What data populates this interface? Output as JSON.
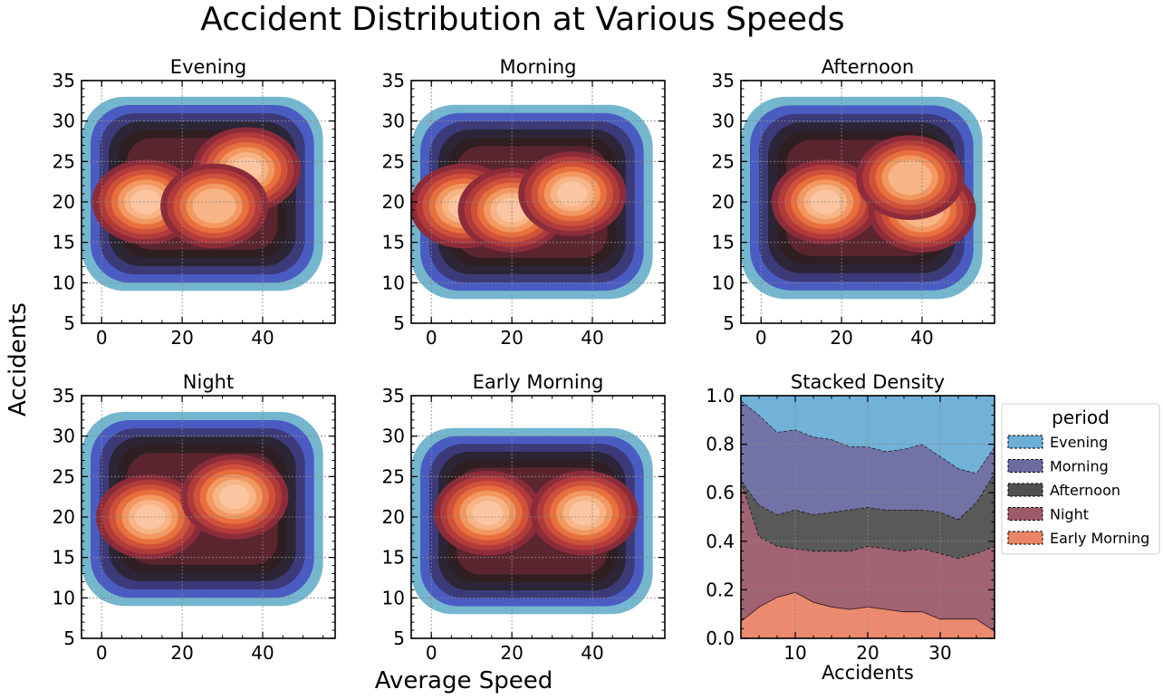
{
  "figure": {
    "title": "Accident Distribution at Various Speeds",
    "xlabel": "Average Speed",
    "ylabel": "Accidents"
  },
  "colors": {
    "kde_levels": [
      "#75b6cf",
      "#4a5cc2",
      "#3c3a78",
      "#2b2536",
      "#2f1f22",
      "#5b2530",
      "#8c2c3a",
      "#b13a3a",
      "#d0513a",
      "#e8703f",
      "#f29860",
      "#f7b486",
      "#fac5a0"
    ],
    "stack": {
      "Evening": "#6baed6",
      "Morning": "#6c6aa1",
      "Afternoon": "#505050",
      "Night": "#9c5a6a",
      "Early Morning": "#ea8466"
    }
  },
  "chart_data": [
    {
      "type": "heatmap",
      "kind": "kde-contour",
      "title": "Evening",
      "xlim": [
        -5,
        58
      ],
      "ylim": [
        5,
        35
      ],
      "xticks": [
        0,
        20,
        40
      ],
      "yticks": [
        5,
        10,
        15,
        20,
        25,
        30,
        35
      ],
      "grid": true,
      "hotspots": [
        {
          "x": 11,
          "y": 20,
          "peak": 1.0
        },
        {
          "x": 36,
          "y": 24,
          "peak": 1.0
        },
        {
          "x": 28,
          "y": 19.5,
          "peak": 0.9
        }
      ],
      "support": {
        "x": [
          -5,
          55
        ],
        "y": [
          9,
          33
        ]
      }
    },
    {
      "type": "heatmap",
      "kind": "kde-contour",
      "title": "Morning",
      "xlim": [
        -5,
        58
      ],
      "ylim": [
        5,
        35
      ],
      "xticks": [
        0,
        20,
        40
      ],
      "yticks": [
        5,
        10,
        15,
        20,
        25,
        30,
        35
      ],
      "grid": true,
      "hotspots": [
        {
          "x": 8,
          "y": 19.5,
          "peak": 0.95
        },
        {
          "x": 20,
          "y": 19,
          "peak": 1.0
        },
        {
          "x": 35,
          "y": 21,
          "peak": 1.0
        }
      ],
      "support": {
        "x": [
          -5,
          55
        ],
        "y": [
          8,
          32
        ]
      }
    },
    {
      "type": "heatmap",
      "kind": "kde-contour",
      "title": "Afternoon",
      "xlim": [
        -5,
        58
      ],
      "ylim": [
        5,
        35
      ],
      "xticks": [
        0,
        20,
        40
      ],
      "yticks": [
        5,
        10,
        15,
        20,
        25,
        30,
        35
      ],
      "grid": true,
      "hotspots": [
        {
          "x": 16,
          "y": 20,
          "peak": 1.0
        },
        {
          "x": 40,
          "y": 19,
          "peak": 0.85
        },
        {
          "x": 37,
          "y": 23,
          "peak": 0.8
        }
      ],
      "support": {
        "x": [
          -5,
          55
        ],
        "y": [
          8,
          33
        ]
      }
    },
    {
      "type": "heatmap",
      "kind": "kde-contour",
      "title": "Night",
      "xlim": [
        -5,
        58
      ],
      "ylim": [
        5,
        35
      ],
      "xticks": [
        0,
        20,
        40
      ],
      "yticks": [
        5,
        10,
        15,
        20,
        25,
        30,
        35
      ],
      "grid": true,
      "hotspots": [
        {
          "x": 12,
          "y": 20,
          "peak": 1.0
        },
        {
          "x": 33,
          "y": 22.5,
          "peak": 1.0
        }
      ],
      "support": {
        "x": [
          -5,
          55
        ],
        "y": [
          9,
          33
        ]
      }
    },
    {
      "type": "heatmap",
      "kind": "kde-contour",
      "title": "Early Morning",
      "xlim": [
        -5,
        58
      ],
      "ylim": [
        5,
        35
      ],
      "xticks": [
        0,
        20,
        40
      ],
      "yticks": [
        5,
        10,
        15,
        20,
        25,
        30,
        35
      ],
      "grid": true,
      "hotspots": [
        {
          "x": 14,
          "y": 20.5,
          "peak": 1.0
        },
        {
          "x": 38,
          "y": 20.5,
          "peak": 1.0
        }
      ],
      "support": {
        "x": [
          -5,
          55
        ],
        "y": [
          8,
          31
        ]
      }
    },
    {
      "type": "area",
      "stacked": true,
      "normalized": true,
      "title": "Stacked Density",
      "xlabel": "Accidents",
      "ylabel": "",
      "xlim": [
        2.5,
        37.5
      ],
      "ylim": [
        0,
        1
      ],
      "xticks": [
        10,
        20,
        30
      ],
      "yticks": [
        0.0,
        0.2,
        0.4,
        0.6,
        0.8,
        1.0
      ],
      "grid": true,
      "legend": {
        "title": "period",
        "placement": "outside-right"
      },
      "x": [
        2.5,
        5,
        7.5,
        10,
        12.5,
        15,
        17.5,
        20,
        22.5,
        25,
        27.5,
        30,
        32.5,
        35,
        37.5
      ],
      "series": [
        {
          "name": "Early Morning",
          "values": [
            0.07,
            0.13,
            0.17,
            0.19,
            0.15,
            0.13,
            0.12,
            0.13,
            0.12,
            0.11,
            0.11,
            0.08,
            0.08,
            0.08,
            0.03
          ]
        },
        {
          "name": "Night",
          "values": [
            0.58,
            0.29,
            0.21,
            0.18,
            0.21,
            0.23,
            0.24,
            0.25,
            0.25,
            0.25,
            0.26,
            0.27,
            0.25,
            0.27,
            0.35
          ]
        },
        {
          "name": "Afternoon",
          "values": [
            0.0,
            0.13,
            0.13,
            0.16,
            0.15,
            0.16,
            0.17,
            0.16,
            0.16,
            0.17,
            0.16,
            0.17,
            0.16,
            0.21,
            0.3
          ]
        },
        {
          "name": "Morning",
          "values": [
            0.33,
            0.37,
            0.34,
            0.33,
            0.32,
            0.3,
            0.26,
            0.25,
            0.24,
            0.25,
            0.27,
            0.23,
            0.21,
            0.12,
            0.11
          ]
        },
        {
          "name": "Evening",
          "values": [
            0.02,
            0.08,
            0.15,
            0.14,
            0.17,
            0.18,
            0.21,
            0.21,
            0.23,
            0.22,
            0.2,
            0.25,
            0.3,
            0.32,
            0.21
          ]
        }
      ],
      "legend_order": [
        "Evening",
        "Morning",
        "Afternoon",
        "Night",
        "Early Morning"
      ]
    }
  ]
}
